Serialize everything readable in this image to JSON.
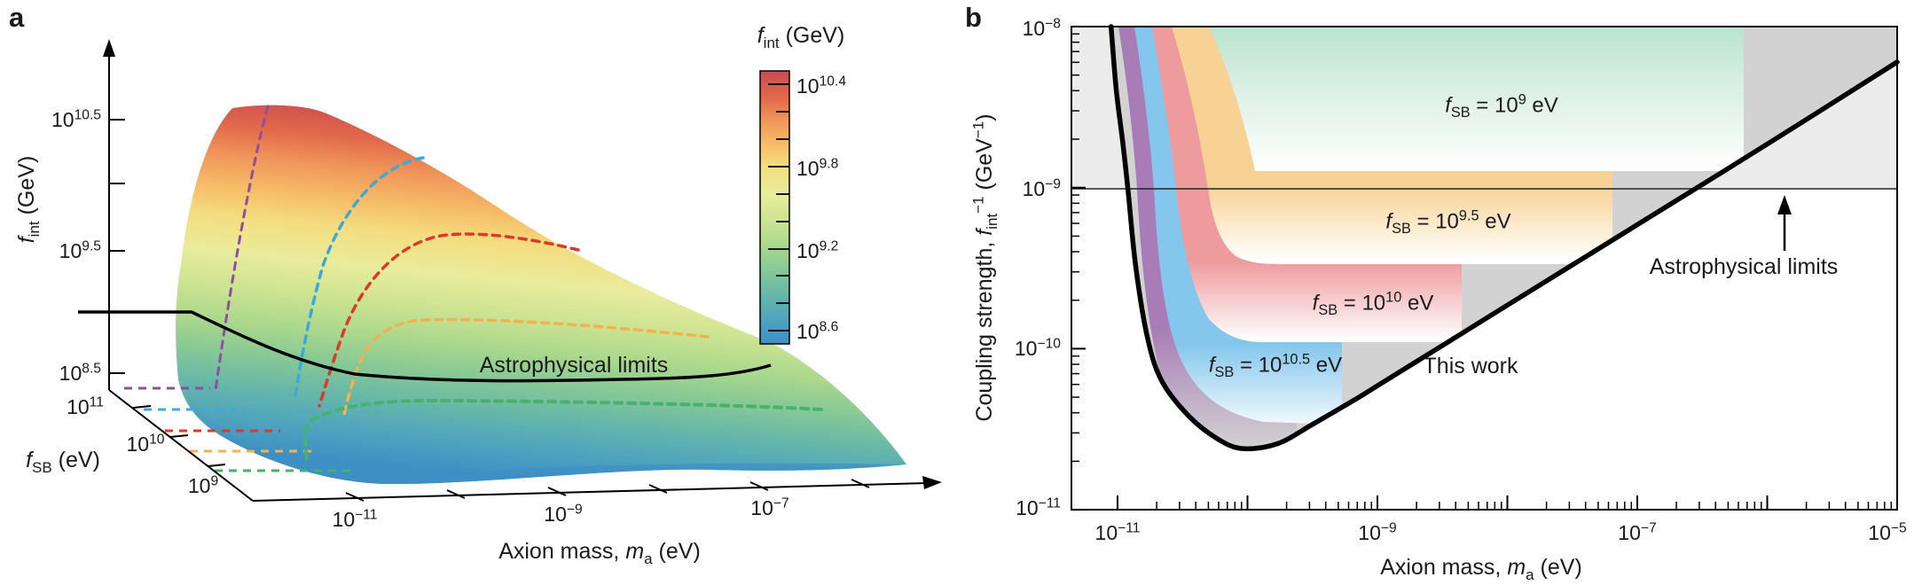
{
  "panel_a": {
    "label": "a",
    "z_axis_title": "*f*_{int} (GeV)",
    "z_ticks": [
      "10^{10.5}",
      "10^{9.5}",
      "10^{8.5}"
    ],
    "fsb_axis_title": "*f*_{SB} (eV)",
    "fsb_ticks": [
      "10^{11}",
      "10^{10}",
      "10^{9}"
    ],
    "x_axis_title": "Axion mass, *m*_{a} (eV)",
    "x_ticks": [
      "10^{−11}",
      "10^{−9}",
      "10^{−7}"
    ],
    "annotation": "Astrophysical limits",
    "colorbar": {
      "title": "*f*_{int} (GeV)",
      "ticks": [
        "10^{10.4}",
        "10^{9.8}",
        "10^{9.2}",
        "10^{8.6}"
      ]
    }
  },
  "panel_b": {
    "label": "b",
    "y_axis_title": "Coupling strength, *f*_{int}^{−1} (GeV^{−1})",
    "x_axis_title": "Axion mass, *m*_{a} (eV)",
    "y_ticks": [
      {
        "log10": -8,
        "label": "10^{−8}"
      },
      {
        "log10": -9,
        "label": "10^{−9}"
      },
      {
        "log10": -10,
        "label": "10^{−10}"
      },
      {
        "log10": -11,
        "label": "10^{−11}"
      }
    ],
    "x_ticks": [
      {
        "log10": -11,
        "label": "10^{−11}"
      },
      {
        "log10": -9,
        "label": "10^{−9}"
      },
      {
        "log10": -7,
        "label": "10^{−7}"
      },
      {
        "log10": -5,
        "label": "10^{−5}"
      }
    ],
    "regions": [
      {
        "label": "*f*_{SB} = 10^{9} eV",
        "color": "#b9e4cd"
      },
      {
        "label": "*f*_{SB} = 10^{9.5} eV",
        "color": "#f8d294"
      },
      {
        "label": "*f*_{SB} = 10^{10} eV",
        "color": "#ee9b9e"
      },
      {
        "label": "*f*_{SB} = 10^{10.5} eV",
        "color": "#85c6ec"
      }
    ],
    "this_work_label": "This work",
    "astro_label": "Astrophysical limits"
  },
  "chart_data": [
    {
      "type": "heatmap",
      "subtype": "3d-surface",
      "title": "",
      "x_label": "Axion mass, m_a (eV)",
      "x_ticks_log10": [
        -11,
        -9,
        -7
      ],
      "x_range_log10": [
        -12,
        -5.5
      ],
      "y_label": "f_SB (eV)",
      "y_ticks_log10": [
        9,
        10,
        11
      ],
      "z_label": "f_int (GeV)",
      "z_ticks_log10": [
        10.5,
        9.5,
        8.5
      ],
      "z_range_log10": [
        8.5,
        10.6
      ],
      "colorbar": {
        "label": "f_int (GeV)",
        "tick_log10": [
          10.4,
          9.8,
          9.2,
          8.6
        ],
        "range_log10": [
          8.5,
          10.5
        ],
        "colors_top_to_bottom": [
          "#c94b50",
          "#e26a4b",
          "#f0955a",
          "#f6bd67",
          "#f4dd80",
          "#e9ec9c",
          "#cfe493",
          "#abd88c",
          "#86c896",
          "#63b5ab",
          "#4da2c0",
          "#3e8fc4"
        ]
      },
      "surface_peak": {
        "f_int_GeV_log10": 10.55,
        "m_a_eV_log10": -11.7,
        "f_SB_eV_log10": 11
      },
      "contours_f_SB_eV": [
        {
          "f_SB": "10^9",
          "color": "#47b26b"
        },
        {
          "f_SB": "10^9.5",
          "color": "#f2b24d"
        },
        {
          "f_SB": "10^10",
          "color": "#d93a2b"
        },
        {
          "f_SB": "10^10.5",
          "color": "#3fa8d8"
        },
        {
          "f_SB": "10^11",
          "color": "#8e4f9e"
        }
      ],
      "annotation": "Astrophysical limits",
      "astro_limit_left_f_int_log10": 9.0,
      "grid": false,
      "legend": false
    },
    {
      "type": "area",
      "title": "",
      "xlabel": "Axion mass, m_a (eV)",
      "ylabel": "Coupling strength, f_int^-1 (GeV^-1)",
      "xlim_log10": [
        -11.35,
        -5
      ],
      "ylim_log10": [
        -11,
        -8
      ],
      "x_ticks_log10": [
        -11,
        -9,
        -7,
        -5
      ],
      "y_ticks_log10": [
        -8,
        -9,
        -10,
        -11
      ],
      "astro_line_GeV_inv": 1e-09,
      "grid": false,
      "legend": false,
      "regions": [
        {
          "label": "f_SB = 10^9 eV",
          "f_SB_eV_log10": 9,
          "color": "#b9e4cd"
        },
        {
          "label": "f_SB = 10^9.5 eV",
          "f_SB_eV_log10": 9.5,
          "color": "#f8d294"
        },
        {
          "label": "f_SB = 10^10 eV",
          "f_SB_eV_log10": 10,
          "color": "#ee9b9e"
        },
        {
          "label": "f_SB = 10^10.5 eV",
          "f_SB_eV_log10": 10.5,
          "color": "#85c6ec"
        },
        {
          "label": "",
          "f_SB_eV_log10": 11,
          "color": "#a87db7"
        }
      ],
      "excluded_color": "#d2d2d2",
      "astro_region_color": "#ececec",
      "this_work": {
        "label": "This work",
        "minimum": {
          "m_a_eV": 1e-10,
          "f_int_inv_GeV": 2.4e-11
        },
        "curve_log10": [
          [
            -11.05,
            -8.0
          ],
          [
            -11.01,
            -8.39
          ],
          [
            -10.96,
            -8.72
          ],
          [
            -10.92,
            -9.01
          ],
          [
            -10.86,
            -9.49
          ],
          [
            -10.77,
            -9.93
          ],
          [
            -10.66,
            -10.2
          ],
          [
            -10.45,
            -10.42
          ],
          [
            -10.23,
            -10.56
          ],
          [
            -10.04,
            -10.62
          ],
          [
            -9.77,
            -10.59
          ],
          [
            -9.5,
            -10.47
          ],
          [
            -9.16,
            -10.31
          ],
          [
            -9.0,
            -10.23
          ],
          [
            -8.5,
            -9.98
          ],
          [
            -8.0,
            -9.73
          ],
          [
            -7.5,
            -9.48
          ],
          [
            -7.0,
            -9.23
          ],
          [
            -6.0,
            -8.73
          ],
          [
            -5.0,
            -8.22
          ]
        ]
      }
    }
  ]
}
